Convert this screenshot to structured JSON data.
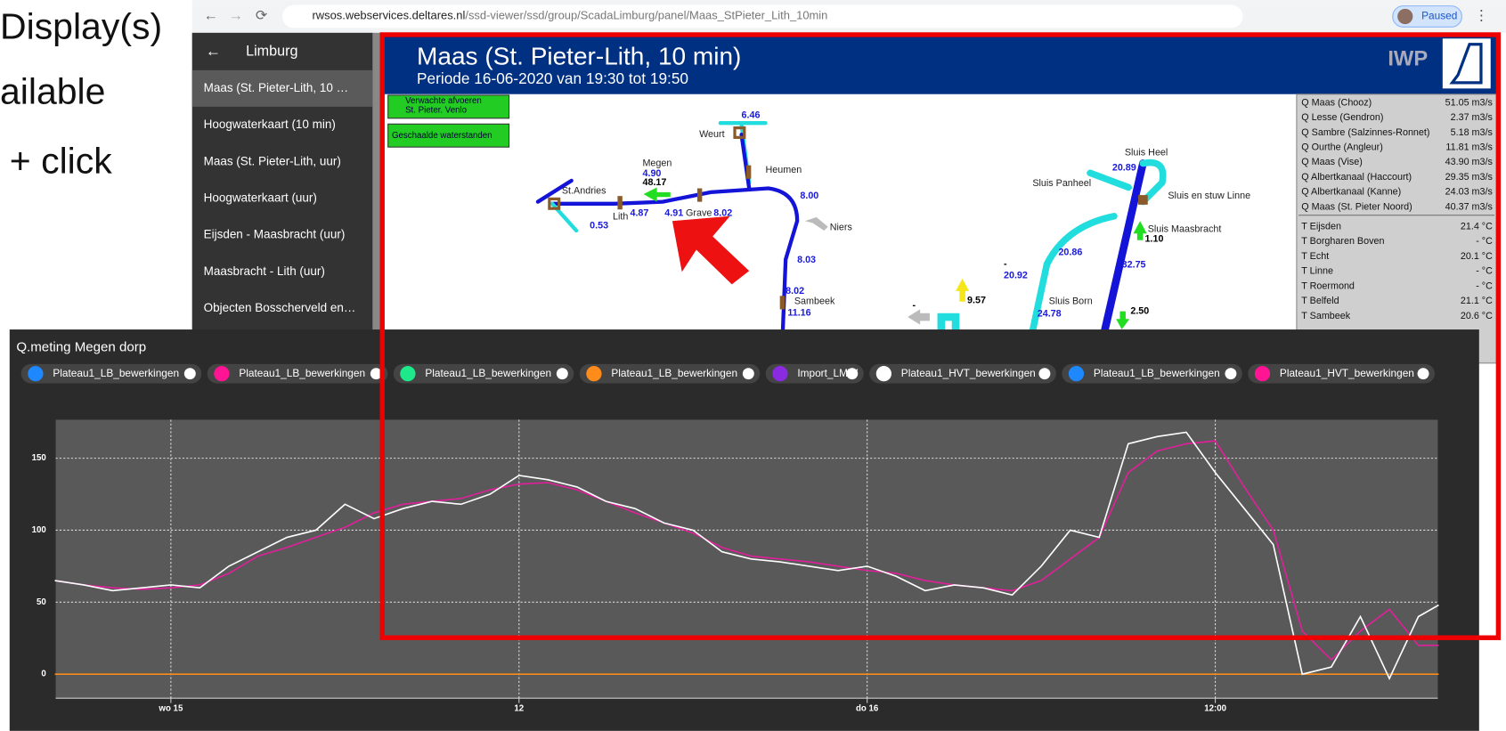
{
  "slide": {
    "lines": [
      "Display(s)",
      "ailable",
      "+ click"
    ]
  },
  "browser": {
    "url_host": "rwsos.webservices.deltares.nl",
    "url_path": "/ssd-viewer/ssd/group/ScadaLimburg/panel/Maas_StPieter_Lith_10min",
    "profile_status": "Paused"
  },
  "sidebar": {
    "header": "Limburg",
    "items": [
      "Maas (St. Pieter-Lith, 10 …",
      "Hoogwaterkaart (10 min)",
      "Maas (St. Pieter-Lith, uur)",
      "Hoogwaterkaart (uur)",
      "Eijsden - Maasbracht (uur)",
      "Maasbracht - Lith (uur)",
      "Objecten Bosscherveld en…"
    ]
  },
  "panel": {
    "title": "Maas (St. Pieter-Lith, 10 min)",
    "subtitle": "Periode 16-06-2020 van 19:30 tot 19:50",
    "logo": "IWP",
    "buttons": [
      [
        "Verwachte afvoeren",
        "St. Pieter. Venlo"
      ],
      [
        "Geschaalde waterstanden"
      ]
    ],
    "map_labels": [
      "6.46",
      "Weurt",
      "Heumen",
      "Megen",
      "4.90",
      "48.17",
      "St.Andries",
      "Lith",
      "4.87",
      "4.91",
      "Grave",
      "8.02",
      "0.53",
      "8.00",
      "Niers",
      "8.03",
      "8.02",
      "Sambeek",
      "11.16",
      "Sluis Heel",
      "20.89",
      "Sluis Panheel",
      "Sluis en stuw Linne",
      "Sluis Maasbracht",
      "1.10",
      "20.86",
      "32.75",
      "-",
      "20.92",
      "Sluis Born",
      "24.78",
      "2.50",
      "9.57",
      "-"
    ],
    "q_table": [
      [
        "Q Maas (Chooz)",
        "51.05 m3/s"
      ],
      [
        "Q Lesse (Gendron)",
        "2.37 m3/s"
      ],
      [
        "Q Sambre (Salzinnes-Ronnet)",
        "5.18 m3/s"
      ],
      [
        "Q Ourthe (Angleur)",
        "11.81 m3/s"
      ],
      [
        "Q Maas (Vise)",
        "43.90 m3/s"
      ],
      [
        "Q Albertkanaal (Haccourt)",
        "29.35 m3/s"
      ],
      [
        "Q Albertkanaal (Kanne)",
        "24.03 m3/s"
      ],
      [
        "Q Maas (St. Pieter Noord)",
        "40.37 m3/s"
      ]
    ],
    "t_table": [
      [
        "T Eijsden",
        "21.4 °C"
      ],
      [
        "T Borgharen Boven",
        "- °C"
      ],
      [
        "T Echt",
        "20.1 °C"
      ],
      [
        "T Linne",
        "- °C"
      ],
      [
        "T Roermond",
        "- °C"
      ],
      [
        "T Belfeld",
        "21.1 °C"
      ],
      [
        "T Sambeek",
        "20.6 °C"
      ]
    ]
  },
  "chart_data": {
    "type": "line",
    "title": "Q.meting Megen dorp",
    "legend": [
      {
        "name": "Plateau1_LB_bewerkingen",
        "color": "#1e88ff"
      },
      {
        "name": "Plateau1_LB_bewerkingen",
        "color": "#ff1493"
      },
      {
        "name": "Plateau1_LB_bewerkingen",
        "color": "#1de98b"
      },
      {
        "name": "Plateau1_LB_bewerkingen",
        "color": "#ff8c1a"
      },
      {
        "name": "Import_LMW",
        "color": "#8a2be2"
      },
      {
        "name": "Plateau1_HVT_bewerkingen",
        "color": "#ffffff"
      },
      {
        "name": "Plateau1_LB_bewerkingen",
        "color": "#1e88ff"
      },
      {
        "name": "Plateau1_HVT_bewerkingen",
        "color": "#ff1493"
      }
    ],
    "x": [
      -4,
      -3,
      -2,
      -1,
      0,
      1,
      2,
      3,
      4,
      5,
      6,
      7,
      8,
      9,
      10,
      11,
      12,
      13,
      14,
      15,
      16,
      17,
      18,
      19,
      20,
      21,
      22,
      23,
      24,
      25,
      26,
      27,
      28,
      29,
      30,
      31,
      32,
      33,
      34,
      35,
      36,
      37,
      38,
      39,
      40,
      41,
      42,
      43,
      43.7
    ],
    "series": [
      {
        "color": "#ffffff",
        "values": [
          65,
          62,
          58,
          60,
          62,
          60,
          75,
          85,
          95,
          100,
          118,
          108,
          115,
          120,
          118,
          125,
          138,
          135,
          130,
          120,
          115,
          105,
          100,
          85,
          80,
          78,
          75,
          72,
          75,
          68,
          58,
          62,
          60,
          55,
          75,
          100,
          95,
          160,
          165,
          168,
          140,
          115,
          90,
          0,
          5,
          40,
          -3,
          40,
          48
        ]
      },
      {
        "color": "#e0209a",
        "values": [
          65,
          62,
          60,
          59,
          60,
          62,
          70,
          82,
          88,
          95,
          102,
          112,
          118,
          120,
          122,
          128,
          132,
          133,
          128,
          120,
          112,
          105,
          98,
          88,
          82,
          80,
          78,
          75,
          72,
          70,
          65,
          62,
          60,
          58,
          65,
          80,
          95,
          140,
          155,
          160,
          162,
          130,
          100,
          30,
          10,
          30,
          45,
          20,
          20
        ]
      },
      {
        "color": "#ff8c1a",
        "values": [
          0,
          0,
          0,
          0,
          0,
          0,
          0,
          0,
          0,
          0,
          0,
          0,
          0,
          0,
          0,
          0,
          0,
          0,
          0,
          0,
          0,
          0,
          0,
          0,
          0,
          0,
          0,
          0,
          0,
          0,
          0,
          0,
          0,
          0,
          0,
          0,
          0,
          0,
          0,
          0,
          0,
          0,
          0,
          0,
          0,
          0,
          0,
          0,
          0
        ]
      }
    ],
    "xlim": [
      -3.97,
      43.67
    ],
    "xticks": [
      {
        "value": 0,
        "label": "wo 15"
      },
      12,
      {
        "value": 24,
        "label": "do 16"
      },
      {
        "value": 36,
        "label": "12:00"
      }
    ],
    "ylim": [
      -16.7,
      176.7
    ],
    "yticks": [
      0,
      50,
      100,
      150
    ],
    "grid": true
  }
}
